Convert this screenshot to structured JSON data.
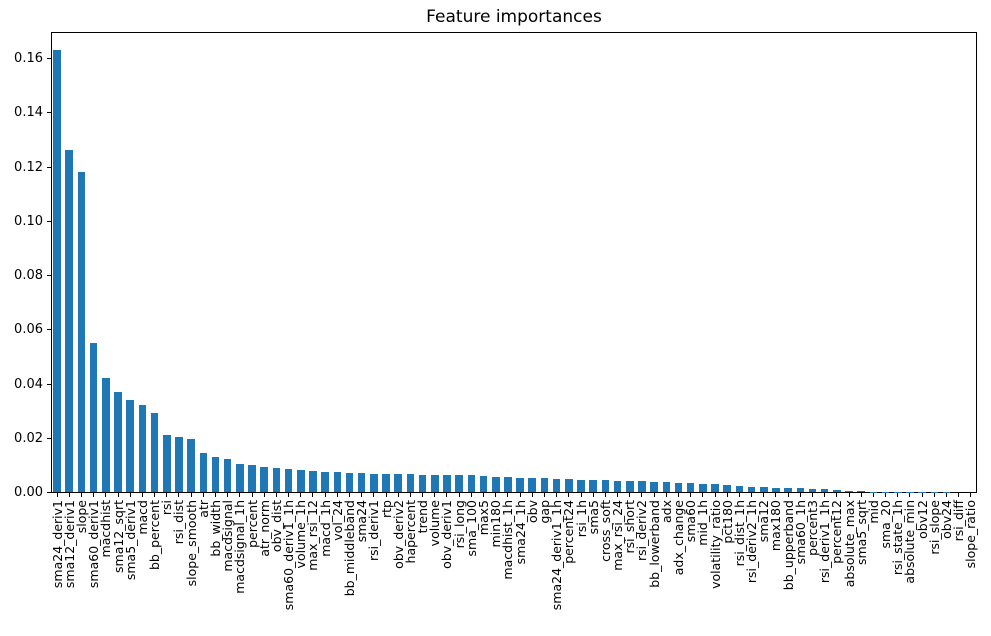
{
  "chart_data": {
    "type": "bar",
    "title": "Feature importances",
    "xlabel": "",
    "ylabel": "",
    "bar_color": "#1f77b4",
    "grid": false,
    "legend": "none",
    "x_tick_rotation": 90,
    "ylim": [
      0,
      0.17
    ],
    "yticks": [
      "0.00",
      "0.02",
      "0.04",
      "0.06",
      "0.08",
      "0.10",
      "0.12",
      "0.14",
      "0.16"
    ],
    "categories": [
      "sma24_deriv1",
      "sma12_deriv1",
      "slope",
      "sma60_deriv1",
      "macdhist",
      "sma12_sqrt",
      "sma5_deriv1",
      "macd",
      "bb_percent",
      "rsi",
      "rsi_dist",
      "slope_smooth",
      "atr",
      "bb_width",
      "macdsignal",
      "macdsignal_1h",
      "percent",
      "atr_norm",
      "obv_dist",
      "sma60_deriv1_1h",
      "volume_1h",
      "max_rsi_12",
      "macd_1h",
      "vol_24",
      "bb_middleband",
      "sma24",
      "rsi_deriv1",
      "rtp",
      "obv_deriv2",
      "hapercent",
      "trend",
      "volume",
      "obv_deriv1",
      "rsi_long",
      "sma_100",
      "max5",
      "min180",
      "macdhist_1h",
      "sma24_1h",
      "obv",
      "gap",
      "sma24_deriv1_1h",
      "percent24",
      "rsi_1h",
      "sma5",
      "cross_soft",
      "max_rsi_24",
      "rsi_short",
      "rsi_deriv2",
      "bb_lowerband",
      "adx",
      "adx_change",
      "sma60",
      "mid_1h",
      "volatility_ratio",
      "pct180",
      "rsi_dist_1h",
      "rsi_deriv2_1h",
      "sma12",
      "max180",
      "bb_upperband",
      "sma60_1h",
      "percent3",
      "rsi_deriv1_1h",
      "percent12",
      "absolute_max",
      "sma5_sqrt",
      "mid",
      "sma_20",
      "rsi_state_1h",
      "absolute_min",
      "obv12",
      "rsi_slope",
      "obv24",
      "rsi_diff",
      "slope_ratio"
    ],
    "values": [
      0.163,
      0.126,
      0.118,
      0.055,
      0.042,
      0.037,
      0.034,
      0.032,
      0.029,
      0.021,
      0.0201,
      0.0195,
      0.0145,
      0.013,
      0.0122,
      0.0103,
      0.0099,
      0.0094,
      0.0088,
      0.0083,
      0.008,
      0.0076,
      0.0074,
      0.0073,
      0.0071,
      0.0069,
      0.0068,
      0.0067,
      0.0066,
      0.0065,
      0.0064,
      0.0063,
      0.0062,
      0.0062,
      0.0061,
      0.0059,
      0.0057,
      0.0055,
      0.0053,
      0.0052,
      0.005,
      0.0048,
      0.0047,
      0.0046,
      0.0045,
      0.0044,
      0.0042,
      0.004,
      0.0039,
      0.0038,
      0.0036,
      0.0034,
      0.0033,
      0.0031,
      0.0028,
      0.0025,
      0.0022,
      0.0019,
      0.0017,
      0.0016,
      0.0014,
      0.0013,
      0.0012,
      0.001,
      0.0008,
      0.0005,
      0.0002,
      0.0001,
      0.0001,
      0.0001,
      0.0001,
      0.0001,
      0.0001,
      0.0001,
      0.0,
      0.0
    ]
  }
}
